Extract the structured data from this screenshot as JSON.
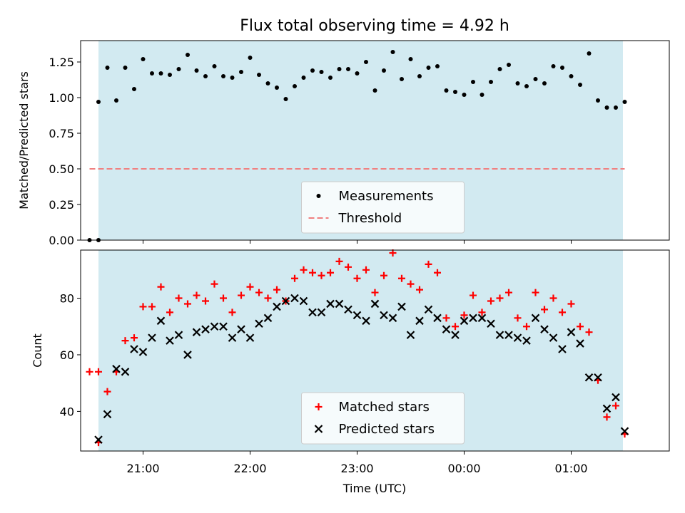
{
  "chart_data": [
    {
      "type": "scatter",
      "title": "Flux total observing time = 4.92 h",
      "xlabel": "",
      "ylabel": "Matched/Predicted stars",
      "ylim": [
        0,
        1.4
      ],
      "x_range": [
        "20:25",
        "01:55"
      ],
      "yticks": [
        "0.00",
        "0.25",
        "0.50",
        "0.75",
        "1.00",
        "1.25"
      ],
      "shaded_interval": [
        "20:35",
        "01:29"
      ],
      "shade_color": "#add8e6",
      "series": [
        {
          "name": "Measurements",
          "color": "#000000",
          "marker": "dot",
          "points": [
            [
              "20:30",
              0.0
            ],
            [
              "20:35",
              0.0
            ],
            [
              "20:35",
              0.97
            ],
            [
              "20:40",
              1.21
            ],
            [
              "20:45",
              0.98
            ],
            [
              "20:50",
              1.21
            ],
            [
              "20:55",
              1.06
            ],
            [
              "21:00",
              1.27
            ],
            [
              "21:05",
              1.17
            ],
            [
              "21:10",
              1.17
            ],
            [
              "21:15",
              1.16
            ],
            [
              "21:20",
              1.2
            ],
            [
              "21:25",
              1.3
            ],
            [
              "21:30",
              1.19
            ],
            [
              "21:35",
              1.15
            ],
            [
              "21:40",
              1.22
            ],
            [
              "21:45",
              1.15
            ],
            [
              "21:50",
              1.14
            ],
            [
              "21:55",
              1.18
            ],
            [
              "22:00",
              1.28
            ],
            [
              "22:05",
              1.16
            ],
            [
              "22:10",
              1.1
            ],
            [
              "22:15",
              1.07
            ],
            [
              "22:20",
              0.99
            ],
            [
              "22:25",
              1.08
            ],
            [
              "22:30",
              1.14
            ],
            [
              "22:35",
              1.19
            ],
            [
              "22:40",
              1.18
            ],
            [
              "22:45",
              1.14
            ],
            [
              "22:50",
              1.2
            ],
            [
              "22:55",
              1.2
            ],
            [
              "23:00",
              1.17
            ],
            [
              "23:05",
              1.25
            ],
            [
              "23:10",
              1.05
            ],
            [
              "23:15",
              1.19
            ],
            [
              "23:20",
              1.32
            ],
            [
              "23:25",
              1.13
            ],
            [
              "23:30",
              1.27
            ],
            [
              "23:35",
              1.15
            ],
            [
              "23:40",
              1.21
            ],
            [
              "23:45",
              1.22
            ],
            [
              "23:50",
              1.05
            ],
            [
              "23:55",
              1.04
            ],
            [
              "00:00",
              1.02
            ],
            [
              "00:05",
              1.11
            ],
            [
              "00:10",
              1.02
            ],
            [
              "00:15",
              1.11
            ],
            [
              "00:20",
              1.2
            ],
            [
              "00:25",
              1.23
            ],
            [
              "00:30",
              1.1
            ],
            [
              "00:35",
              1.08
            ],
            [
              "00:40",
              1.13
            ],
            [
              "00:45",
              1.1
            ],
            [
              "00:50",
              1.22
            ],
            [
              "00:55",
              1.21
            ],
            [
              "01:00",
              1.15
            ],
            [
              "01:05",
              1.09
            ],
            [
              "01:10",
              1.31
            ],
            [
              "01:15",
              0.98
            ],
            [
              "01:20",
              0.93
            ],
            [
              "01:25",
              0.93
            ],
            [
              "01:30",
              0.97
            ]
          ]
        },
        {
          "name": "Threshold",
          "color": "#f08080",
          "style": "dashed",
          "points": [
            [
              "20:30",
              0.5
            ],
            [
              "01:30",
              0.5
            ]
          ]
        }
      ],
      "legend": "lower center"
    },
    {
      "type": "scatter",
      "title": "",
      "xlabel": "Time (UTC)",
      "ylabel": "Count",
      "ylim": [
        26,
        97
      ],
      "x_range": [
        "20:25",
        "01:55"
      ],
      "xticks": [
        "21:00",
        "22:00",
        "23:00",
        "00:00",
        "01:00"
      ],
      "yticks": [
        "40",
        "60",
        "80"
      ],
      "shaded_interval": [
        "20:35",
        "01:29"
      ],
      "shade_color": "#add8e6",
      "series": [
        {
          "name": "Matched stars",
          "color": "#ff0000",
          "marker": "plus",
          "points": [
            [
              "20:30",
              54
            ],
            [
              "20:35",
              54
            ],
            [
              "20:35",
              29
            ],
            [
              "20:40",
              47
            ],
            [
              "20:45",
              54
            ],
            [
              "20:50",
              65
            ],
            [
              "20:55",
              66
            ],
            [
              "21:00",
              77
            ],
            [
              "21:05",
              77
            ],
            [
              "21:10",
              84
            ],
            [
              "21:15",
              75
            ],
            [
              "21:20",
              80
            ],
            [
              "21:25",
              78
            ],
            [
              "21:30",
              81
            ],
            [
              "21:35",
              79
            ],
            [
              "21:40",
              85
            ],
            [
              "21:45",
              80
            ],
            [
              "21:50",
              75
            ],
            [
              "21:55",
              81
            ],
            [
              "22:00",
              84
            ],
            [
              "22:05",
              82
            ],
            [
              "22:10",
              80
            ],
            [
              "22:15",
              83
            ],
            [
              "22:20",
              79
            ],
            [
              "22:25",
              87
            ],
            [
              "22:30",
              90
            ],
            [
              "22:35",
              89
            ],
            [
              "22:40",
              88
            ],
            [
              "22:45",
              89
            ],
            [
              "22:50",
              93
            ],
            [
              "22:55",
              91
            ],
            [
              "23:00",
              87
            ],
            [
              "23:05",
              90
            ],
            [
              "23:10",
              82
            ],
            [
              "23:15",
              88
            ],
            [
              "23:20",
              96
            ],
            [
              "23:25",
              87
            ],
            [
              "23:30",
              85
            ],
            [
              "23:35",
              83
            ],
            [
              "23:40",
              92
            ],
            [
              "23:45",
              89
            ],
            [
              "23:50",
              73
            ],
            [
              "23:55",
              70
            ],
            [
              "00:00",
              74
            ],
            [
              "00:05",
              81
            ],
            [
              "00:10",
              75
            ],
            [
              "00:15",
              79
            ],
            [
              "00:20",
              80
            ],
            [
              "00:25",
              82
            ],
            [
              "00:30",
              73
            ],
            [
              "00:35",
              70
            ],
            [
              "00:40",
              82
            ],
            [
              "00:45",
              76
            ],
            [
              "00:50",
              80
            ],
            [
              "00:55",
              75
            ],
            [
              "01:00",
              78
            ],
            [
              "01:05",
              70
            ],
            [
              "01:10",
              68
            ],
            [
              "01:15",
              51
            ],
            [
              "01:20",
              38
            ],
            [
              "01:25",
              42
            ],
            [
              "01:30",
              32
            ]
          ]
        },
        {
          "name": "Predicted stars",
          "color": "#000000",
          "marker": "x",
          "points": [
            [
              "20:35",
              30
            ],
            [
              "20:40",
              39
            ],
            [
              "20:45",
              55
            ],
            [
              "20:50",
              54
            ],
            [
              "20:55",
              62
            ],
            [
              "21:00",
              61
            ],
            [
              "21:05",
              66
            ],
            [
              "21:10",
              72
            ],
            [
              "21:15",
              65
            ],
            [
              "21:20",
              67
            ],
            [
              "21:25",
              60
            ],
            [
              "21:30",
              68
            ],
            [
              "21:35",
              69
            ],
            [
              "21:40",
              70
            ],
            [
              "21:45",
              70
            ],
            [
              "21:50",
              66
            ],
            [
              "21:55",
              69
            ],
            [
              "22:00",
              66
            ],
            [
              "22:05",
              71
            ],
            [
              "22:10",
              73
            ],
            [
              "22:15",
              77
            ],
            [
              "22:20",
              79
            ],
            [
              "22:25",
              80
            ],
            [
              "22:30",
              79
            ],
            [
              "22:35",
              75
            ],
            [
              "22:40",
              75
            ],
            [
              "22:45",
              78
            ],
            [
              "22:50",
              78
            ],
            [
              "22:55",
              76
            ],
            [
              "23:00",
              74
            ],
            [
              "23:05",
              72
            ],
            [
              "23:10",
              78
            ],
            [
              "23:15",
              74
            ],
            [
              "23:20",
              73
            ],
            [
              "23:25",
              77
            ],
            [
              "23:30",
              67
            ],
            [
              "23:35",
              72
            ],
            [
              "23:40",
              76
            ],
            [
              "23:45",
              73
            ],
            [
              "23:50",
              69
            ],
            [
              "23:55",
              67
            ],
            [
              "00:00",
              72
            ],
            [
              "00:05",
              73
            ],
            [
              "00:10",
              73
            ],
            [
              "00:15",
              71
            ],
            [
              "00:20",
              67
            ],
            [
              "00:25",
              67
            ],
            [
              "00:30",
              66
            ],
            [
              "00:35",
              65
            ],
            [
              "00:40",
              73
            ],
            [
              "00:45",
              69
            ],
            [
              "00:50",
              66
            ],
            [
              "00:55",
              62
            ],
            [
              "01:00",
              68
            ],
            [
              "01:05",
              64
            ],
            [
              "01:10",
              52
            ],
            [
              "01:15",
              52
            ],
            [
              "01:20",
              41
            ],
            [
              "01:25",
              45
            ],
            [
              "01:30",
              33
            ]
          ]
        }
      ],
      "legend": "lower center"
    }
  ]
}
